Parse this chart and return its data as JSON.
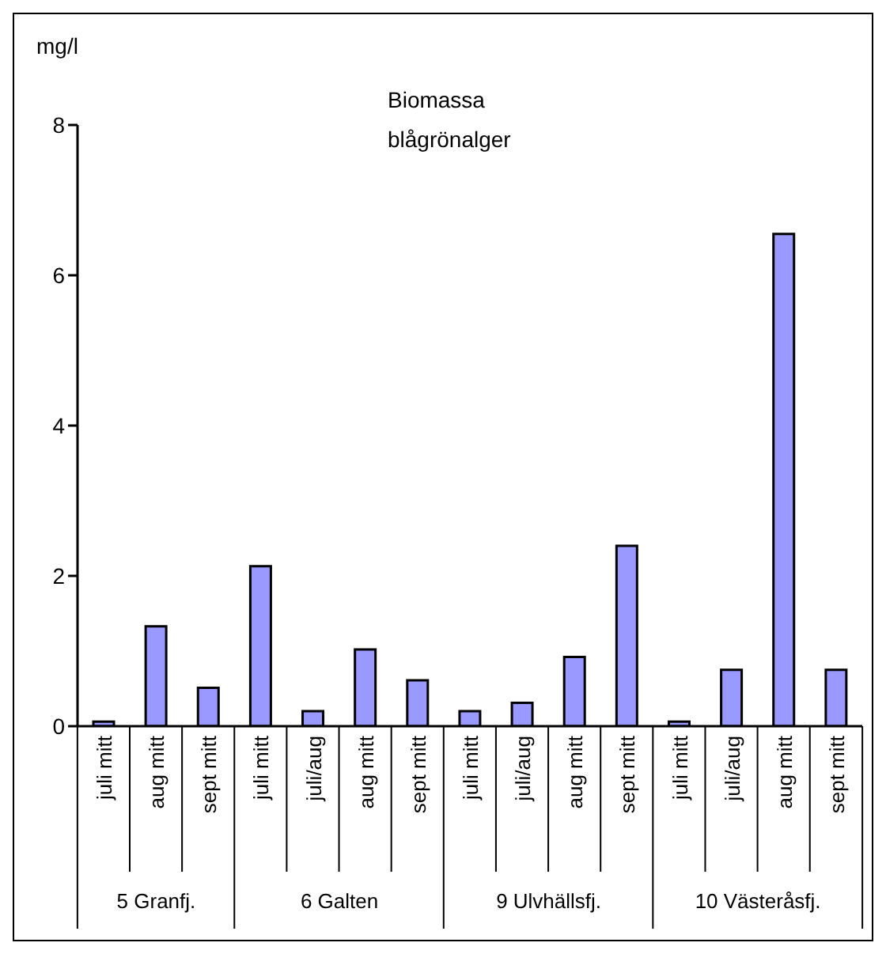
{
  "chart_data": {
    "type": "bar",
    "title": "Biomassa blågrönalger",
    "ylabel": "mg/l",
    "categories": [
      "juli mitt",
      "aug mitt",
      "sept mitt",
      "juli mitt",
      "juli/aug",
      "aug mitt",
      "sept mitt",
      "juli mitt",
      "juli/aug",
      "aug mitt",
      "sept mitt",
      "juli mitt",
      "juli/aug",
      "aug mitt",
      "sept mitt"
    ],
    "values": [
      0.06,
      1.33,
      0.51,
      2.13,
      0.2,
      1.02,
      0.61,
      0.2,
      0.31,
      0.92,
      2.4,
      0.06,
      0.75,
      6.55,
      0.75
    ],
    "color": "#9999ff",
    "ylim": [
      0,
      8
    ],
    "yticks": [
      0,
      2,
      4,
      6,
      8
    ],
    "grid": false,
    "legend": false,
    "annotations": [
      "5 Granfj.",
      "6 Galten",
      "9 Ulvhällsfj.",
      "10 Västeråsfj."
    ]
  }
}
